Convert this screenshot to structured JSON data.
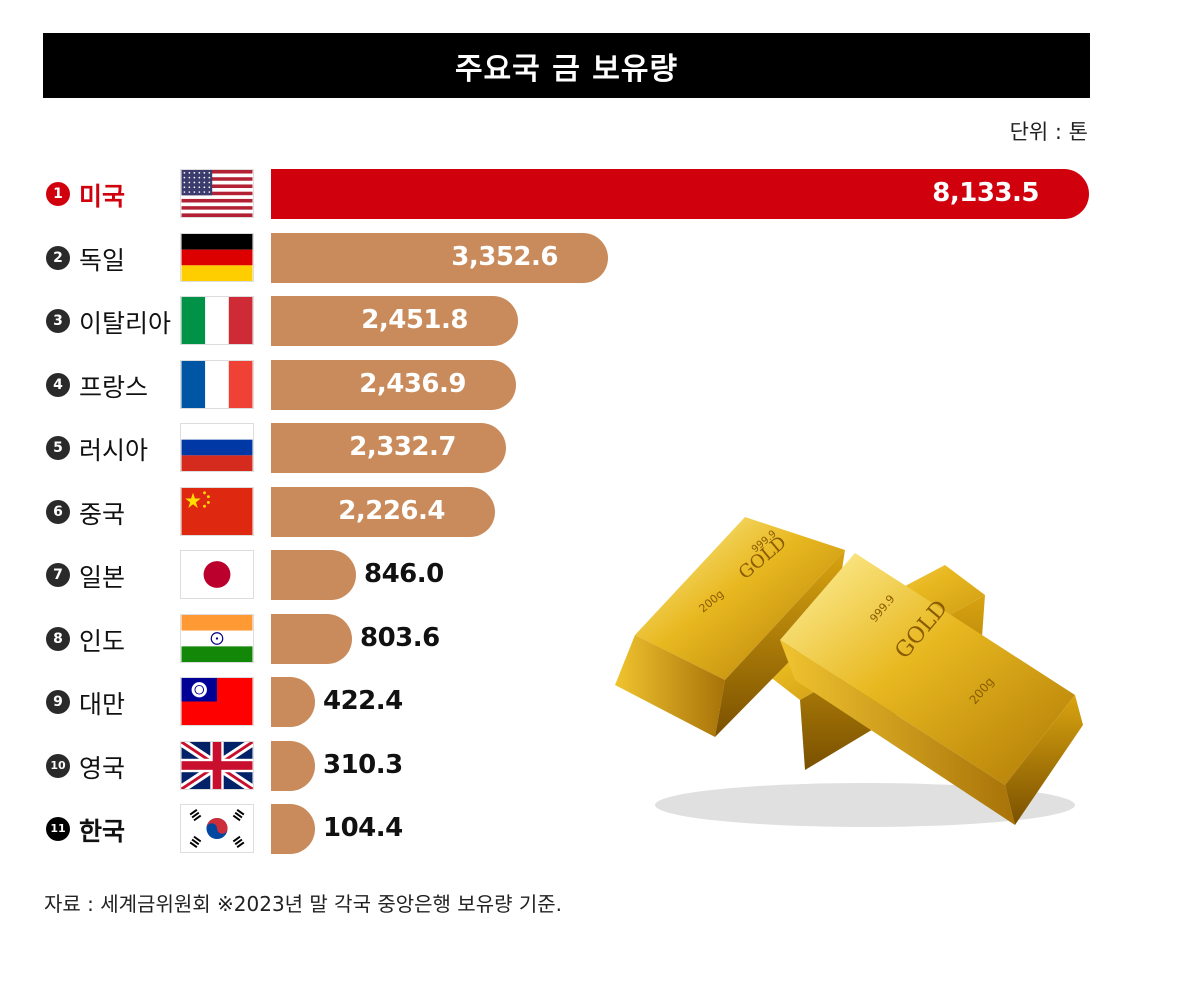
{
  "title": "주요국 금 보유량",
  "unit": "단위 : 톤",
  "footnote": "자료 : 세계금위원회 ※2023년 말 각국 중앙은행 보유량 기준.",
  "colors": {
    "highlight": "#d0000d",
    "bar": "#c98b5b",
    "title_bg": "#000000"
  },
  "chart_data": {
    "type": "bar",
    "orientation": "horizontal",
    "title": "주요국 금 보유량",
    "unit": "단위 : 톤",
    "categories": [
      "미국",
      "독일",
      "이탈리아",
      "프랑스",
      "러시아",
      "중국",
      "일본",
      "인도",
      "대만",
      "영국",
      "한국"
    ],
    "values": [
      8133.5,
      3352.6,
      2451.8,
      2436.9,
      2332.7,
      2226.4,
      846.0,
      803.6,
      422.4,
      310.3,
      104.4
    ],
    "value_labels": [
      "8,133.5",
      "3,352.6",
      "2,451.8",
      "2,436.9",
      "2,332.7",
      "2,226.4",
      "846.0",
      "803.6",
      "422.4",
      "310.3",
      "104.4"
    ],
    "ranks": [
      "1",
      "2",
      "3",
      "4",
      "5",
      "6",
      "7",
      "8",
      "9",
      "10",
      "11"
    ],
    "flags": [
      "us-flag-icon",
      "germany-flag-icon",
      "italy-flag-icon",
      "france-flag-icon",
      "russia-flag-icon",
      "china-flag-icon",
      "japan-flag-icon",
      "india-flag-icon",
      "taiwan-flag-icon",
      "uk-flag-icon",
      "korea-flag-icon"
    ],
    "highlight_red": "미국",
    "highlight_bold": "한국",
    "grid": false,
    "legend": "none"
  },
  "illustration": {
    "bar1": {
      "purity": "999.9",
      "brand": "GOLD",
      "weight": "200g"
    },
    "bar2": {
      "purity": "999.9",
      "brand": "GOLD",
      "weight": "200g"
    }
  }
}
